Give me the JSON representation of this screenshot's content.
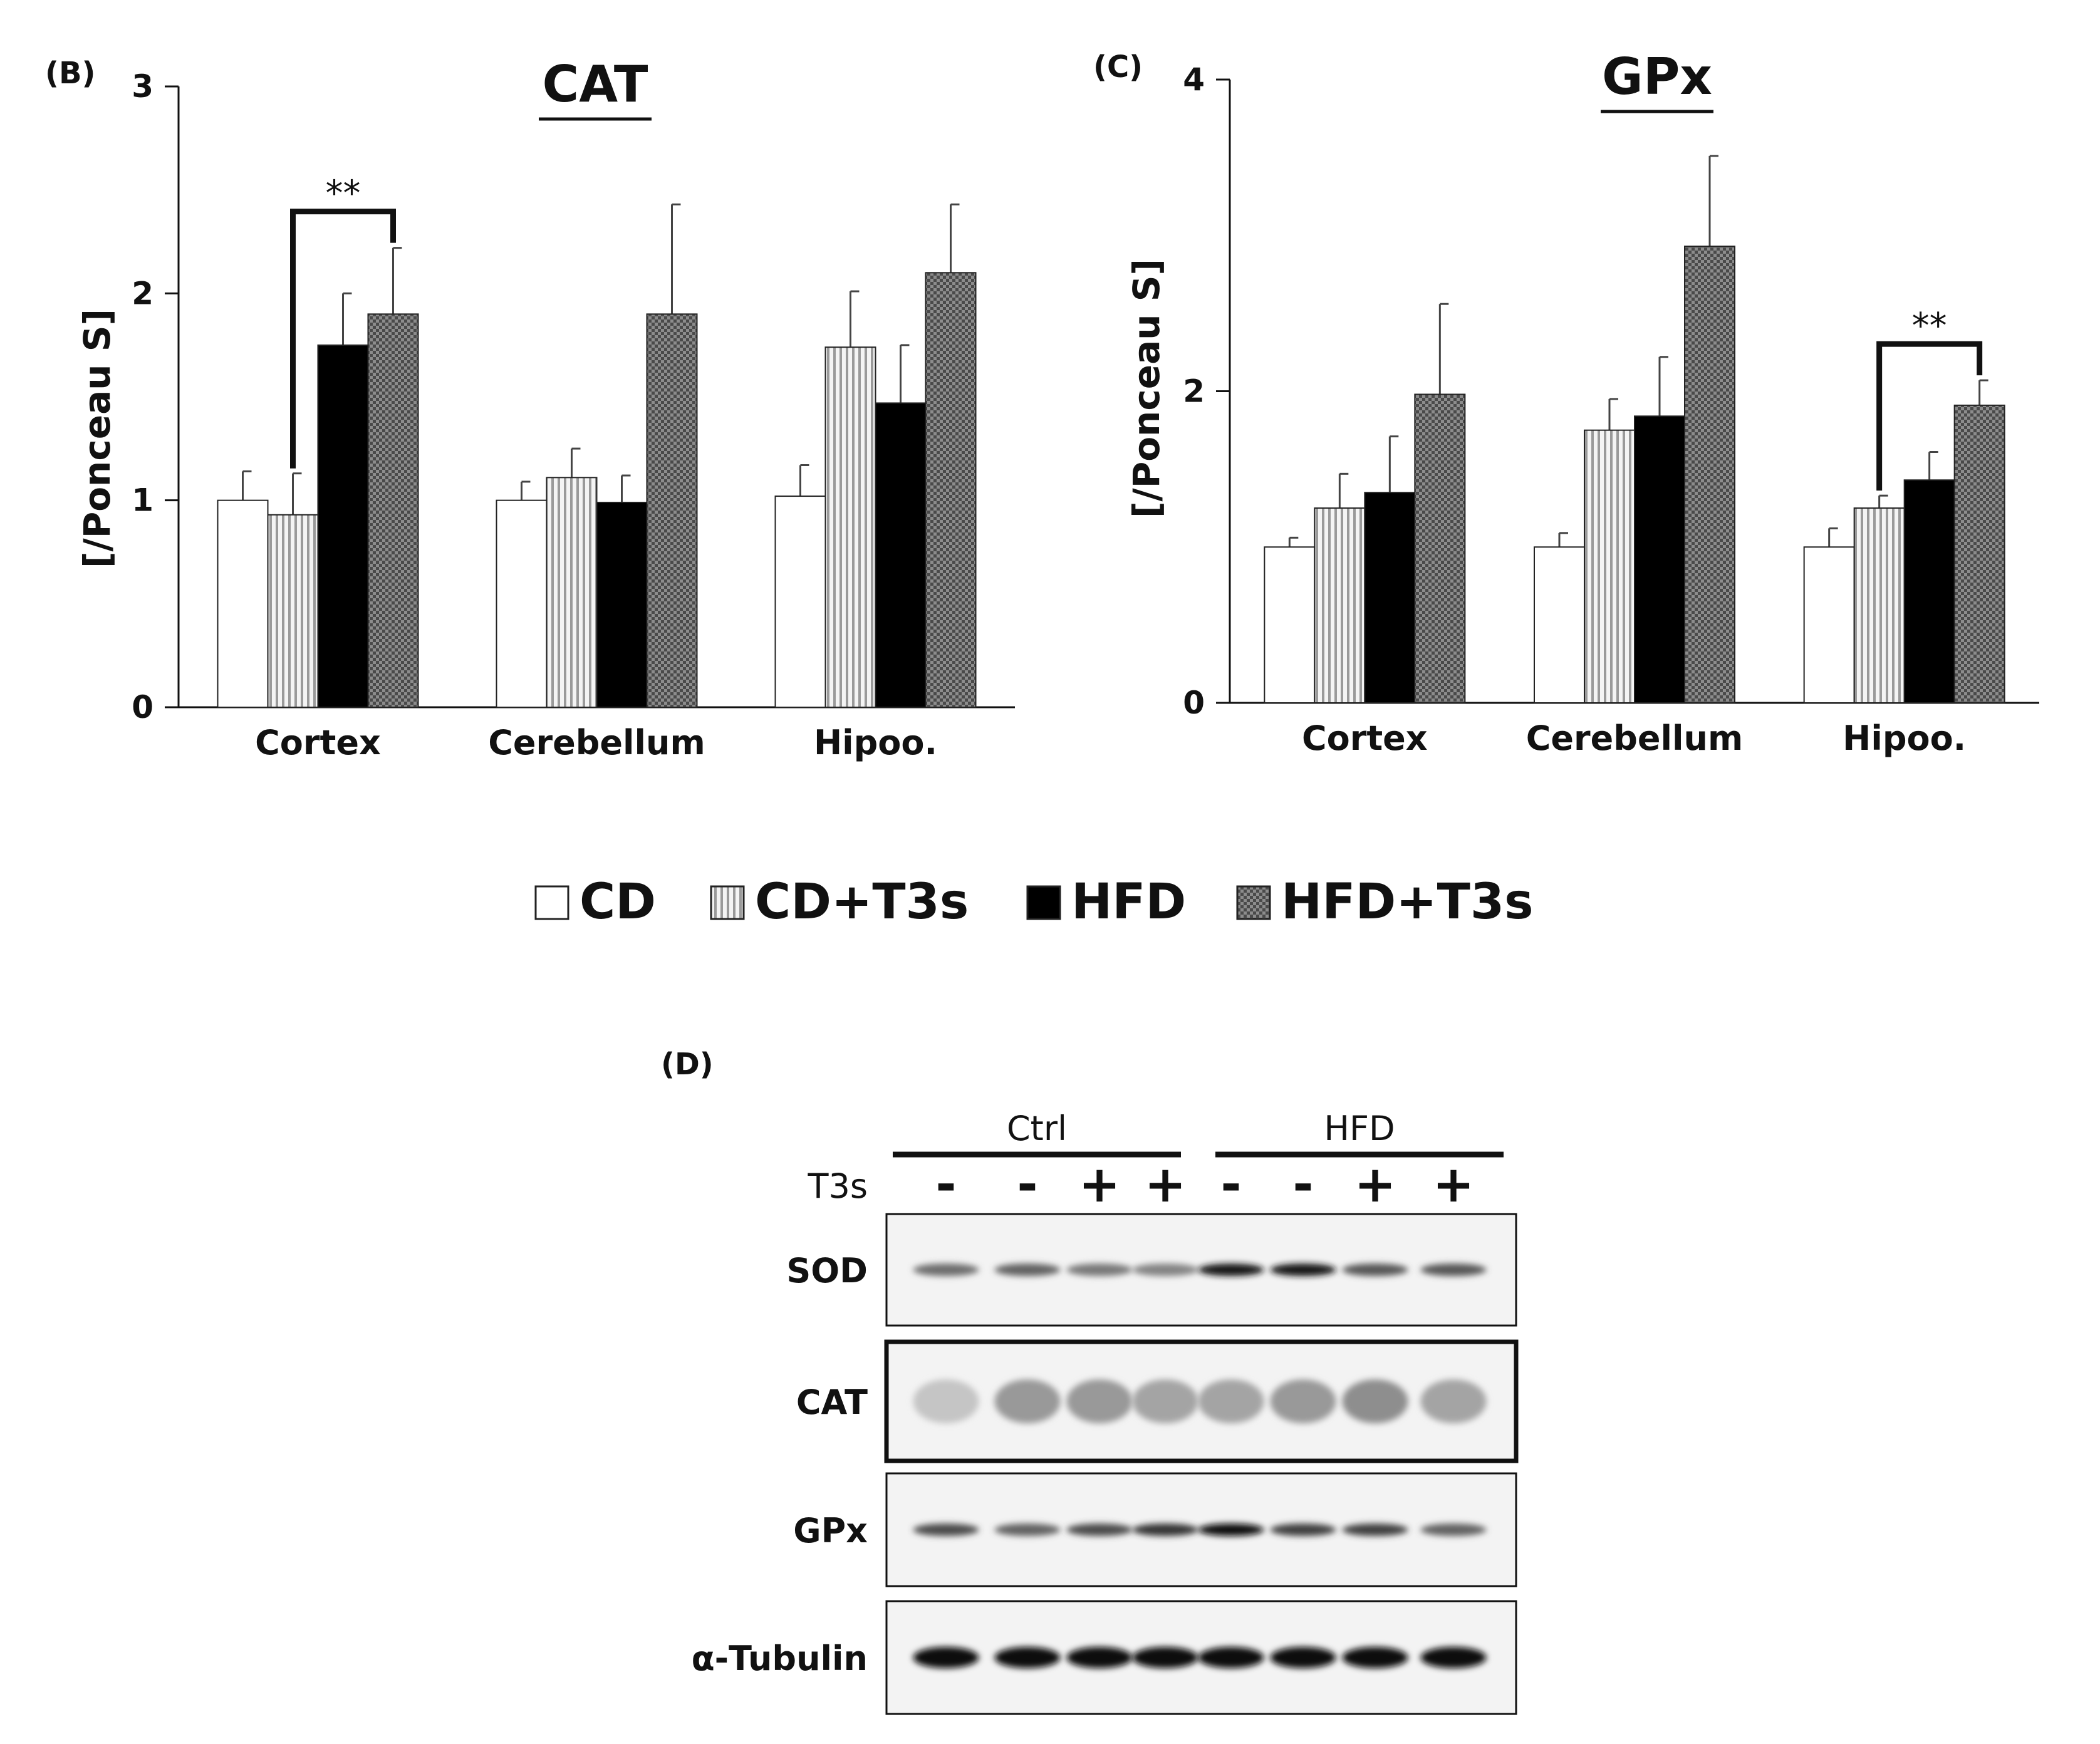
{
  "legend": {
    "entries": [
      {
        "label": "CD",
        "pattern": "white"
      },
      {
        "label": "CD+T3s",
        "pattern": "vstripe"
      },
      {
        "label": "HFD",
        "pattern": "black"
      },
      {
        "label": "HFD+T3s",
        "pattern": "check"
      }
    ]
  },
  "chart_data": [
    {
      "type": "bar",
      "panel_label": "(B)",
      "title": "CAT",
      "ylabel": "[/Ponceau S]",
      "xlabel": "",
      "ylim": [
        0,
        3
      ],
      "yticks": [
        "0",
        "1",
        "2",
        "3"
      ],
      "categories": [
        "Cortex",
        "Cerebellum",
        "Hipoo."
      ],
      "series": [
        {
          "name": "CD",
          "values": [
            1.0,
            1.0,
            1.02
          ],
          "errors": [
            0.14,
            0.09,
            0.15
          ]
        },
        {
          "name": "CD+T3s",
          "values": [
            0.93,
            1.11,
            1.74
          ],
          "errors": [
            0.2,
            0.14,
            0.27
          ]
        },
        {
          "name": "HFD",
          "values": [
            1.75,
            0.99,
            1.47
          ],
          "errors": [
            0.25,
            0.13,
            0.28
          ]
        },
        {
          "name": "HFD+T3s",
          "values": [
            1.9,
            1.9,
            2.1
          ],
          "errors": [
            0.32,
            0.53,
            0.33
          ]
        }
      ],
      "significance": [
        {
          "category": "Cortex",
          "from": "CD+T3s",
          "to": "HFD+T3s",
          "label": "**"
        }
      ]
    },
    {
      "type": "bar",
      "panel_label": "(C)",
      "title": "GPx",
      "ylabel": "[/Ponceau S]",
      "xlabel": "",
      "ylim": [
        0,
        4
      ],
      "yticks": [
        "0",
        "2",
        "4"
      ],
      "categories": [
        "Cortex",
        "Cerebellum",
        "Hipoo."
      ],
      "series": [
        {
          "name": "CD",
          "values": [
            1.0,
            1.0,
            1.0
          ],
          "errors": [
            0.06,
            0.09,
            0.12
          ]
        },
        {
          "name": "CD+T3s",
          "values": [
            1.25,
            1.75,
            1.25
          ],
          "errors": [
            0.22,
            0.2,
            0.08
          ]
        },
        {
          "name": "HFD",
          "values": [
            1.35,
            1.84,
            1.43
          ],
          "errors": [
            0.36,
            0.38,
            0.18
          ]
        },
        {
          "name": "HFD+T3s",
          "values": [
            1.98,
            2.93,
            1.91
          ],
          "errors": [
            0.58,
            0.58,
            0.16
          ]
        }
      ],
      "significance": [
        {
          "category": "Hipoo.",
          "from": "CD+T3s",
          "to": "HFD+T3s",
          "label": "**"
        }
      ]
    }
  ],
  "blot": {
    "panel_label": "(D)",
    "groups": [
      "Ctrl",
      "HFD"
    ],
    "treatment_label": "T3s",
    "treatment_signs": [
      "-",
      "-",
      "+",
      "+",
      "-",
      "-",
      "+",
      "+"
    ],
    "rows": [
      {
        "label": "SOD",
        "intensity": [
          0.55,
          0.6,
          0.5,
          0.45,
          0.95,
          0.95,
          0.65,
          0.65
        ]
      },
      {
        "label": "CAT",
        "intensity": [
          0.15,
          0.35,
          0.35,
          0.3,
          0.3,
          0.35,
          0.4,
          0.3
        ]
      },
      {
        "label": "GPx",
        "intensity": [
          0.7,
          0.6,
          0.7,
          0.8,
          1.0,
          0.75,
          0.75,
          0.6
        ]
      },
      {
        "label": "α-Tubulin",
        "intensity": [
          1.0,
          1.0,
          1.0,
          1.0,
          1.0,
          1.0,
          1.0,
          1.0
        ]
      }
    ]
  }
}
